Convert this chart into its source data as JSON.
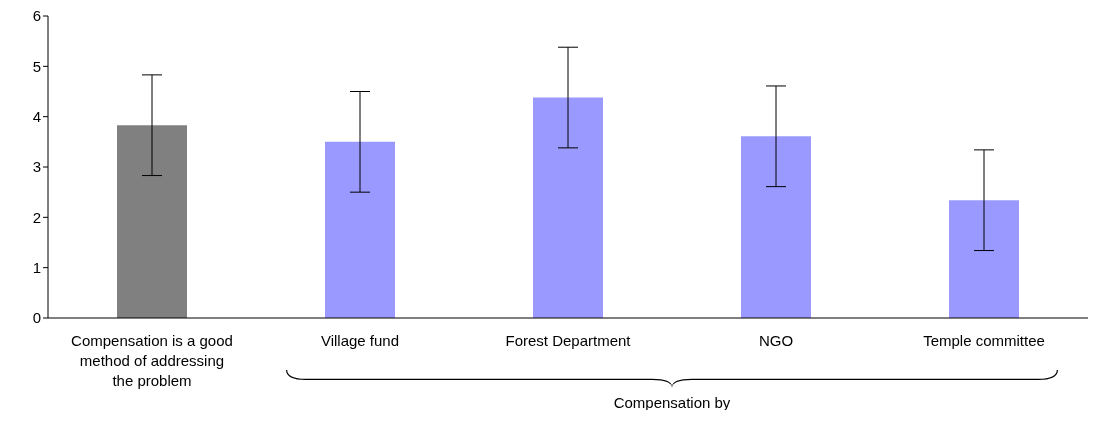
{
  "chart_data": {
    "type": "bar",
    "categories": [
      "Compensation is a good method of addressing the problem",
      "Village fund",
      "Forest Department",
      "NGO",
      "Temple committee"
    ],
    "values": [
      3.83,
      3.5,
      4.38,
      3.61,
      2.34
    ],
    "colors": [
      "#808080",
      "#9999ff",
      "#9999ff",
      "#9999ff",
      "#9999ff"
    ],
    "errors": [
      1,
      1,
      1,
      1,
      1
    ],
    "ylim": [
      0,
      6
    ],
    "yticks": [
      0,
      1,
      2,
      3,
      4,
      5,
      6
    ],
    "annotations": [
      "Compensation by"
    ]
  }
}
